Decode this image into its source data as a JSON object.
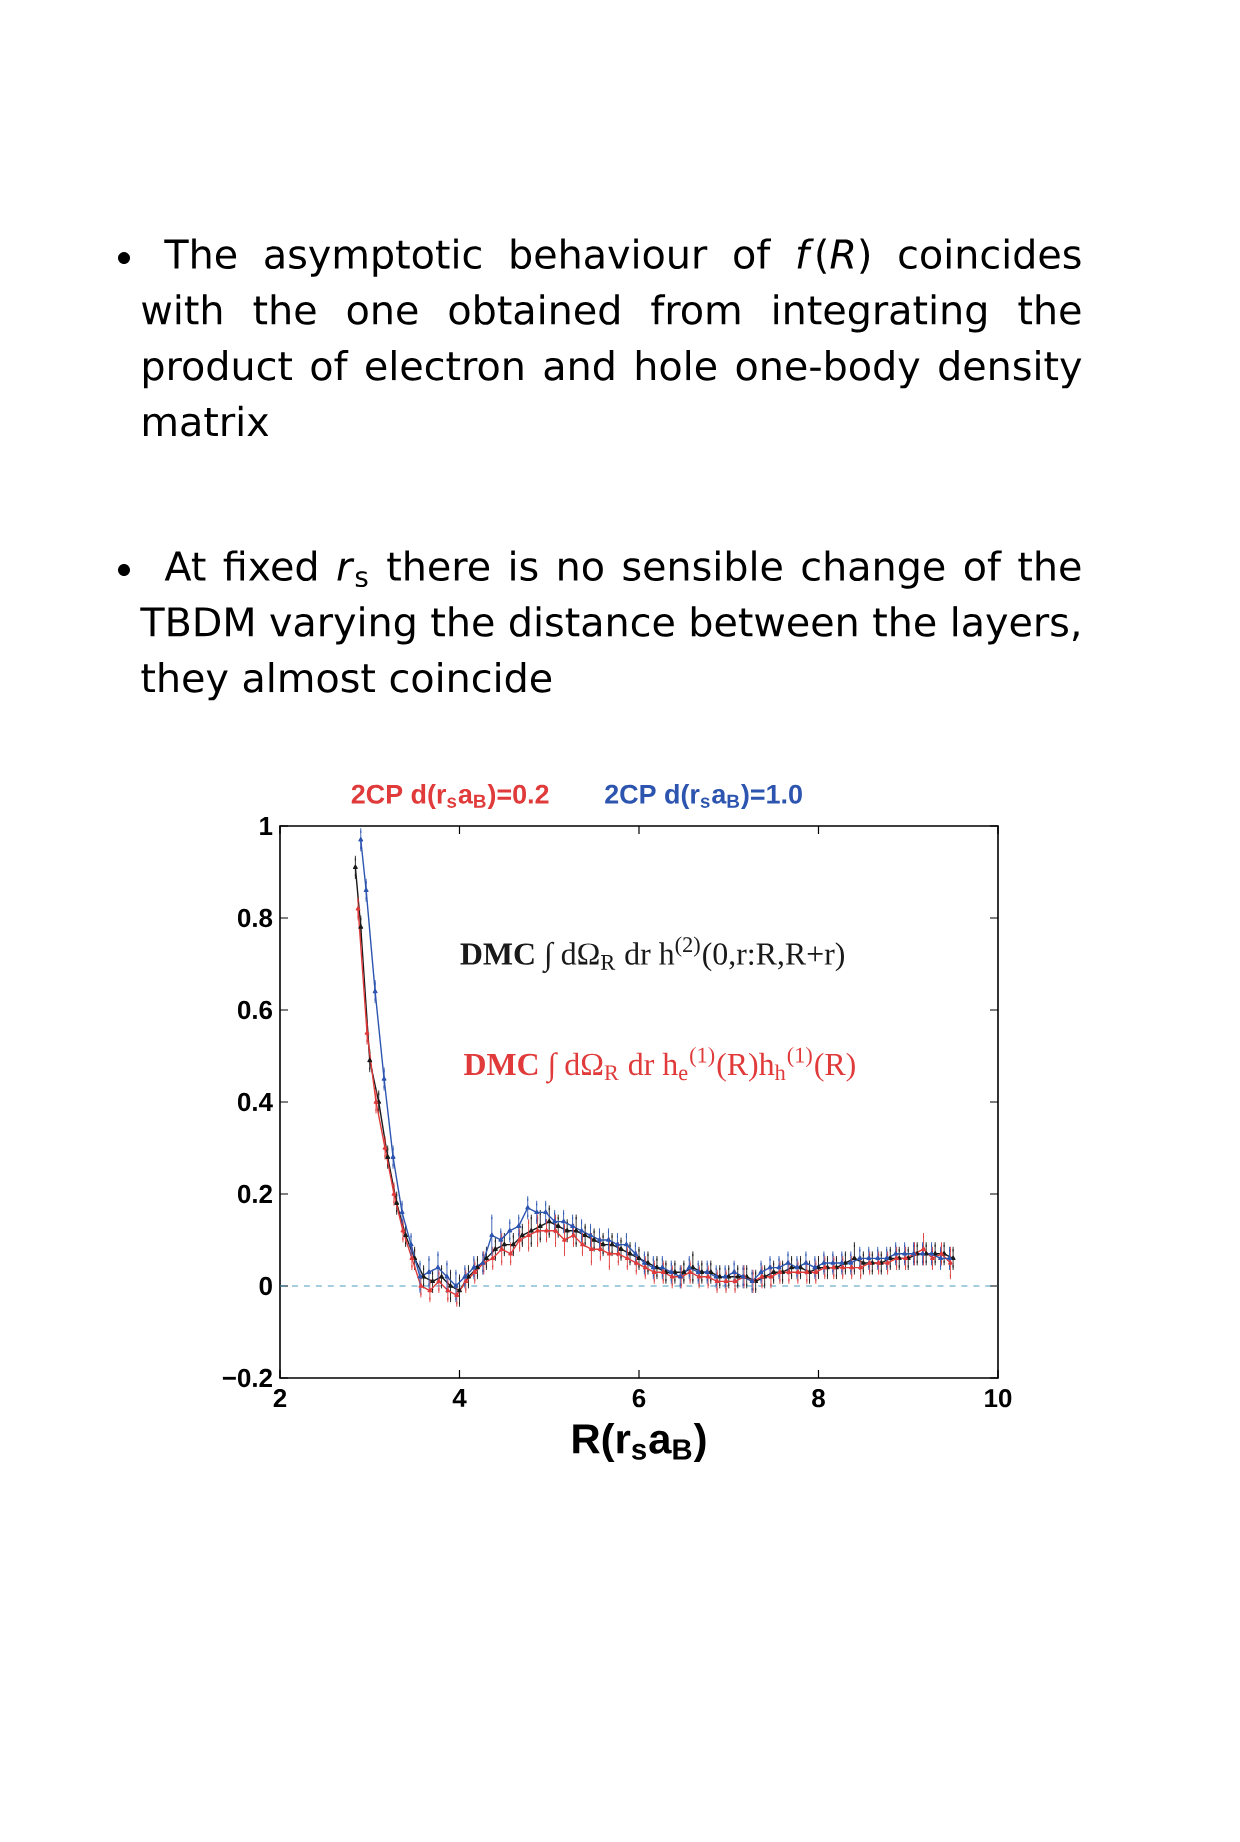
{
  "chart_data": {
    "type": "line",
    "annotations": [
      "The asymptotic behaviour of *f*(*R*) coincides with the one obtained from integrating the product of electron and hole one-body density matrix",
      "At fixed *r*$_{s}$ there is no sensible change of the TBDM varying the distance between the layers, they almost coincide",
      "2CP d(r$_{s}$a$_{B}$)=0.2"
    ],
    "xlabel": "R(r$_{s}$a$_{B}$)",
    "xlim": [
      2,
      10
    ],
    "ylim": [
      -0.2,
      1
    ],
    "xticks": [
      2,
      4,
      6,
      8,
      10
    ],
    "yticks": [
      {
        "value": -0.2,
        "label": "−0.2"
      },
      0,
      0.2,
      0.4,
      0.6,
      0.8,
      1
    ],
    "marker": "triangle",
    "series": [
      {
        "name": "**DMC** ∫ dΩ$_{R}$ dr h$^{(2)}$(0,r:R,R+r)",
        "color": "#1a1a1a",
        "x": [
          2.84,
          2.9,
          3.0,
          3.1,
          3.2,
          3.3,
          3.4,
          3.5,
          3.6,
          3.7,
          3.8,
          3.9,
          4.0,
          4.1,
          4.2,
          4.3,
          4.4,
          4.5,
          4.6,
          4.7,
          4.8,
          4.9,
          5.0,
          5.1,
          5.2,
          5.3,
          5.4,
          5.5,
          5.6,
          5.7,
          5.8,
          5.9,
          6.0,
          6.1,
          6.2,
          6.3,
          6.4,
          6.5,
          6.6,
          6.7,
          6.8,
          6.9,
          7.0,
          7.1,
          7.2,
          7.3,
          7.4,
          7.5,
          7.6,
          7.7,
          7.8,
          7.9,
          8.0,
          8.1,
          8.2,
          8.3,
          8.4,
          8.5,
          8.6,
          8.7,
          8.8,
          8.9,
          9.0,
          9.1,
          9.2,
          9.3,
          9.4,
          9.5
        ],
        "values": [
          0.91,
          0.78,
          0.49,
          0.4,
          0.28,
          0.18,
          0.11,
          0.06,
          0.02,
          0.01,
          0.02,
          0.0,
          -0.01,
          0.02,
          0.04,
          0.06,
          0.08,
          0.09,
          0.09,
          0.11,
          0.12,
          0.13,
          0.14,
          0.13,
          0.12,
          0.12,
          0.11,
          0.1,
          0.09,
          0.09,
          0.08,
          0.07,
          0.06,
          0.05,
          0.04,
          0.03,
          0.03,
          0.03,
          0.04,
          0.03,
          0.03,
          0.02,
          0.02,
          0.02,
          0.02,
          0.01,
          0.02,
          0.03,
          0.03,
          0.04,
          0.04,
          0.03,
          0.04,
          0.04,
          0.04,
          0.05,
          0.06,
          0.05,
          0.05,
          0.05,
          0.06,
          0.06,
          0.06,
          0.07,
          0.07,
          0.07,
          0.07,
          0.06
        ],
        "errors": [
          0.02,
          0.02,
          0.02,
          0.02,
          0.02,
          0.02,
          0.02,
          0.02,
          0.02,
          0.02,
          0.02,
          0.03,
          0.03,
          0.02,
          0.02,
          0.02,
          0.02,
          0.02,
          0.02,
          0.02,
          0.03,
          0.03,
          0.03,
          0.02,
          0.02,
          0.03,
          0.02,
          0.02,
          0.02,
          0.02,
          0.02,
          0.02,
          0.02,
          0.02,
          0.02,
          0.02,
          0.02,
          0.02,
          0.03,
          0.02,
          0.02,
          0.02,
          0.02,
          0.02,
          0.02,
          0.02,
          0.02,
          0.02,
          0.02,
          0.02,
          0.02,
          0.02,
          0.02,
          0.02,
          0.02,
          0.02,
          0.03,
          0.02,
          0.02,
          0.02,
          0.02,
          0.02,
          0.02,
          0.02,
          0.02,
          0.02,
          0.02,
          0.02
        ]
      },
      {
        "name": "**DMC** ∫ dΩ$_{R}$ dr h$_{e}$$^{(1)}$(R)h$_{h}$$^{(1)}$(R)",
        "color": "#e03a3a",
        "x": [
          2.87,
          2.97,
          3.07,
          3.17,
          3.27,
          3.37,
          3.47,
          3.57,
          3.67,
          3.77,
          3.87,
          3.97,
          4.07,
          4.17,
          4.27,
          4.37,
          4.47,
          4.57,
          4.67,
          4.77,
          4.87,
          4.97,
          5.07,
          5.17,
          5.27,
          5.37,
          5.47,
          5.57,
          5.67,
          5.77,
          5.87,
          5.97,
          6.07,
          6.17,
          6.27,
          6.37,
          6.47,
          6.57,
          6.67,
          6.77,
          6.87,
          6.97,
          7.07,
          7.17,
          7.27,
          7.37,
          7.47,
          7.57,
          7.67,
          7.77,
          7.87,
          7.97,
          8.07,
          8.17,
          8.27,
          8.37,
          8.47,
          8.57,
          8.67,
          8.77,
          8.87,
          8.97,
          9.07,
          9.17,
          9.27,
          9.37,
          9.47
        ],
        "values": [
          0.82,
          0.55,
          0.4,
          0.3,
          0.2,
          0.12,
          0.06,
          0.0,
          -0.01,
          0.01,
          -0.01,
          -0.02,
          0.01,
          0.03,
          0.05,
          0.06,
          0.08,
          0.07,
          0.1,
          0.11,
          0.12,
          0.12,
          0.12,
          0.1,
          0.11,
          0.09,
          0.08,
          0.08,
          0.07,
          0.07,
          0.06,
          0.05,
          0.04,
          0.03,
          0.03,
          0.02,
          0.02,
          0.03,
          0.02,
          0.02,
          0.01,
          0.01,
          0.01,
          0.02,
          0.01,
          0.02,
          0.02,
          0.03,
          0.03,
          0.03,
          0.03,
          0.03,
          0.04,
          0.04,
          0.04,
          0.04,
          0.04,
          0.05,
          0.05,
          0.05,
          0.06,
          0.06,
          0.07,
          0.08,
          0.06,
          0.07,
          0.05
        ],
        "errors": [
          0.02,
          0.02,
          0.02,
          0.02,
          0.02,
          0.02,
          0.02,
          0.02,
          0.02,
          0.02,
          0.02,
          0.02,
          0.02,
          0.02,
          0.02,
          0.02,
          0.03,
          0.02,
          0.02,
          0.03,
          0.03,
          0.02,
          0.03,
          0.03,
          0.02,
          0.02,
          0.03,
          0.02,
          0.03,
          0.02,
          0.02,
          0.02,
          0.02,
          0.02,
          0.02,
          0.02,
          0.02,
          0.02,
          0.02,
          0.02,
          0.02,
          0.02,
          0.02,
          0.02,
          0.02,
          0.02,
          0.02,
          0.02,
          0.02,
          0.02,
          0.02,
          0.02,
          0.02,
          0.02,
          0.02,
          0.02,
          0.02,
          0.02,
          0.02,
          0.02,
          0.02,
          0.02,
          0.02,
          0.03,
          0.02,
          0.02,
          0.03
        ]
      },
      {
        "name": "2CP d(r$_{s}$a$_{B}$)=1.0",
        "color": "#2d55b0",
        "x": [
          2.9,
          2.96,
          3.06,
          3.16,
          3.26,
          3.36,
          3.46,
          3.56,
          3.66,
          3.76,
          3.86,
          3.96,
          4.06,
          4.16,
          4.26,
          4.36,
          4.46,
          4.56,
          4.66,
          4.76,
          4.86,
          4.96,
          5.06,
          5.16,
          5.26,
          5.36,
          5.46,
          5.56,
          5.66,
          5.76,
          5.86,
          5.96,
          6.06,
          6.16,
          6.26,
          6.36,
          6.46,
          6.56,
          6.66,
          6.76,
          6.86,
          6.96,
          7.06,
          7.16,
          7.26,
          7.36,
          7.46,
          7.56,
          7.66,
          7.76,
          7.86,
          7.96,
          8.06,
          8.16,
          8.26,
          8.36,
          8.46,
          8.56,
          8.66,
          8.76,
          8.86,
          8.96,
          9.06,
          9.16,
          9.26,
          9.36,
          9.46
        ],
        "values": [
          0.97,
          0.86,
          0.64,
          0.45,
          0.28,
          0.16,
          0.09,
          0.02,
          0.03,
          0.04,
          0.02,
          0.0,
          0.02,
          0.04,
          0.05,
          0.11,
          0.1,
          0.12,
          0.13,
          0.17,
          0.16,
          0.16,
          0.14,
          0.14,
          0.13,
          0.12,
          0.11,
          0.1,
          0.1,
          0.09,
          0.09,
          0.07,
          0.05,
          0.04,
          0.04,
          0.03,
          0.02,
          0.04,
          0.03,
          0.03,
          0.02,
          0.02,
          0.03,
          0.02,
          0.01,
          0.03,
          0.04,
          0.04,
          0.05,
          0.04,
          0.05,
          0.04,
          0.05,
          0.05,
          0.05,
          0.05,
          0.06,
          0.06,
          0.06,
          0.06,
          0.07,
          0.07,
          0.07,
          0.07,
          0.07,
          0.06,
          0.06
        ],
        "errors": [
          0.02,
          0.02,
          0.02,
          0.02,
          0.02,
          0.02,
          0.02,
          0.03,
          0.03,
          0.03,
          0.03,
          0.03,
          0.02,
          0.02,
          0.02,
          0.04,
          0.02,
          0.02,
          0.02,
          0.02,
          0.02,
          0.02,
          0.02,
          0.02,
          0.02,
          0.02,
          0.02,
          0.02,
          0.02,
          0.02,
          0.02,
          0.02,
          0.02,
          0.02,
          0.02,
          0.02,
          0.02,
          0.02,
          0.02,
          0.02,
          0.02,
          0.02,
          0.02,
          0.02,
          0.02,
          0.02,
          0.02,
          0.02,
          0.02,
          0.02,
          0.02,
          0.02,
          0.02,
          0.02,
          0.02,
          0.02,
          0.02,
          0.02,
          0.02,
          0.02,
          0.02,
          0.02,
          0.02,
          0.02,
          0.02,
          0.02,
          0.02
        ]
      }
    ],
    "ref_lines": [
      {
        "axis": "y",
        "value": 0,
        "color": "#4a9cc0",
        "line_style": "dashed"
      }
    ]
  }
}
